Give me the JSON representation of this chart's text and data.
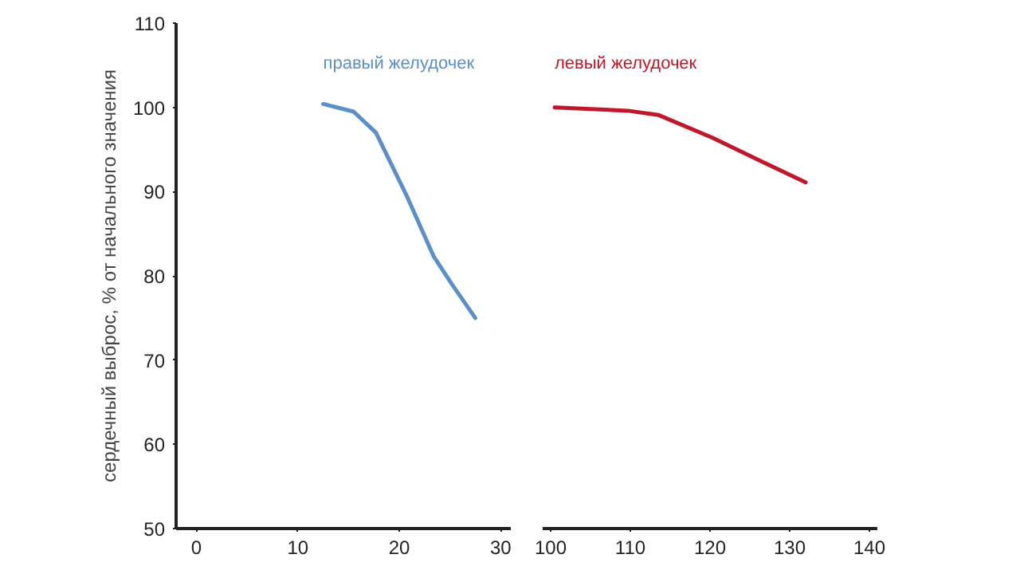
{
  "chart_data": [
    {
      "type": "line",
      "ylabel": "сердечный выброс, % от начального значения",
      "xlim": [
        -2,
        31
      ],
      "xticks": [
        0,
        10,
        20,
        30
      ],
      "ylim": [
        50,
        110
      ],
      "yticks": [
        50,
        60,
        70,
        80,
        90,
        100,
        110
      ],
      "series": [
        {
          "name": "правый желудочек",
          "color": "#5b8fc9",
          "x": [
            12.5,
            15.5,
            17.7,
            20.7,
            23.4,
            25.2,
            27.5
          ],
          "values": [
            100.4,
            99.5,
            97,
            89.6,
            82.3,
            79,
            75
          ]
        }
      ]
    },
    {
      "type": "line",
      "xlim": [
        99,
        141
      ],
      "xticks": [
        100,
        110,
        120,
        130,
        140
      ],
      "ylim": [
        50,
        110
      ],
      "yticks": [
        50,
        60,
        70,
        80,
        90,
        100,
        110
      ],
      "tick_labels": "x",
      "series": [
        {
          "name": "левый желудочек",
          "color": "#c0182a",
          "x": [
            100.5,
            105,
            109.7,
            113.5,
            120.3,
            126,
            132
          ],
          "values": [
            100,
            99.8,
            99.6,
            99.1,
            96.4,
            93.8,
            91.1
          ]
        }
      ]
    }
  ]
}
